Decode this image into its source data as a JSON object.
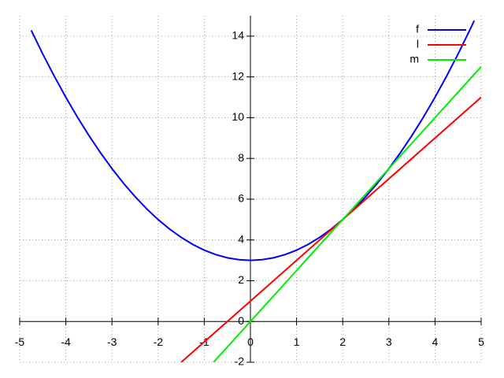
{
  "chart_data": {
    "type": "line",
    "xlim": [
      -5,
      5
    ],
    "ylim": [
      -2,
      15
    ],
    "xticks": [
      -5,
      -4,
      -3,
      -2,
      -1,
      0,
      1,
      2,
      3,
      4,
      5
    ],
    "yticks": [
      -2,
      0,
      2,
      4,
      6,
      8,
      10,
      12,
      14
    ],
    "grid": true,
    "legend": "top-right",
    "series": [
      {
        "name": "f",
        "color": "#0000ff",
        "x": [
          -4.75,
          -4.5,
          -4.25,
          -4,
          -3.75,
          -3.5,
          -3.25,
          -3,
          -2.75,
          -2.5,
          -2.25,
          -2,
          -1.75,
          -1.5,
          -1.25,
          -1,
          -0.75,
          -0.5,
          -0.25,
          0,
          0.25,
          0.5,
          0.75,
          1,
          1.25,
          1.5,
          1.75,
          2,
          2.25,
          2.5,
          2.75,
          3,
          3.25,
          3.5,
          3.75,
          4,
          4.25,
          4.5,
          4.75,
          4.85
        ],
        "values": [
          14.28125,
          13.125,
          12.03125,
          11,
          10.03125,
          9.125,
          8.28125,
          7.5,
          6.78125,
          6.125,
          5.53125,
          5,
          4.53125,
          4.125,
          3.78125,
          3.5,
          3.28125,
          3.125,
          3.03125,
          3,
          3.03125,
          3.125,
          3.28125,
          3.5,
          3.78125,
          4.125,
          4.53125,
          5,
          5.53125,
          6.125,
          6.78125,
          7.5,
          8.28125,
          9.125,
          10.03125,
          11,
          12.03125,
          13.125,
          14.28125,
          14.76125
        ]
      },
      {
        "name": "l",
        "color": "#ff0000",
        "x": [
          -1.5,
          5
        ],
        "values": [
          -2,
          11
        ]
      },
      {
        "name": "m",
        "color": "#00ee00",
        "x": [
          -0.8,
          5
        ],
        "values": [
          -2,
          12.5
        ]
      }
    ]
  }
}
